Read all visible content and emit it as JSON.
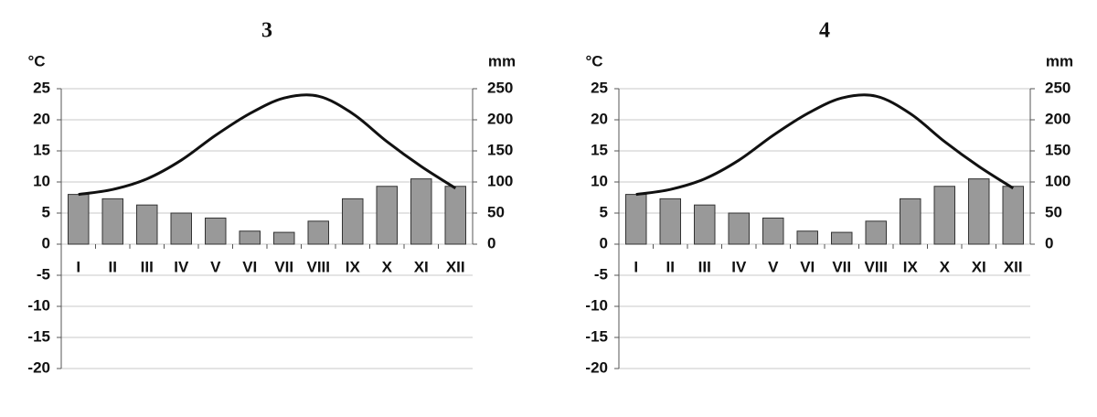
{
  "chart_data": [
    {
      "type": "combo",
      "title": "3",
      "ylabel": "°C",
      "y2label": "mm",
      "categories": [
        "I",
        "II",
        "III",
        "IV",
        "V",
        "VI",
        "VII",
        "VIII",
        "IX",
        "X",
        "XI",
        "XII"
      ],
      "series": [
        {
          "type": "bar",
          "axis": "y2",
          "color": "#999999",
          "values": [
            80,
            73,
            63,
            50,
            42,
            21,
            19,
            37,
            73,
            93,
            105,
            93
          ]
        },
        {
          "type": "line",
          "color": "#111111",
          "values": [
            8,
            8.8,
            10.5,
            13.5,
            17.5,
            21,
            23.5,
            23.8,
            21,
            16.5,
            12.5,
            9
          ]
        }
      ],
      "ylim": [
        -20,
        25
      ],
      "yticks": [
        -20,
        -15,
        -10,
        -5,
        0,
        5,
        10,
        15,
        20,
        25
      ],
      "y2lim": [
        -200,
        250
      ],
      "y2ticks": [
        0,
        50,
        100,
        150,
        200,
        250
      ],
      "grid": true
    },
    {
      "type": "combo",
      "title": "4",
      "ylabel": "°C",
      "y2label": "mm",
      "categories": [
        "I",
        "II",
        "III",
        "IV",
        "V",
        "VI",
        "VII",
        "VIII",
        "IX",
        "X",
        "XI",
        "XII"
      ],
      "series": [
        {
          "type": "bar",
          "axis": "y2",
          "color": "#999999",
          "values": [
            80,
            73,
            63,
            50,
            42,
            21,
            19,
            37,
            73,
            93,
            105,
            93
          ]
        },
        {
          "type": "line",
          "color": "#111111",
          "values": [
            8,
            8.8,
            10.5,
            13.5,
            17.5,
            21,
            23.5,
            23.8,
            21,
            16.5,
            12.5,
            9
          ]
        }
      ],
      "ylim": [
        -20,
        25
      ],
      "yticks": [
        -20,
        -15,
        -10,
        -5,
        0,
        5,
        10,
        15,
        20,
        25
      ],
      "y2lim": [
        -200,
        250
      ],
      "y2ticks": [
        0,
        50,
        100,
        150,
        200,
        250
      ],
      "grid": true
    }
  ]
}
